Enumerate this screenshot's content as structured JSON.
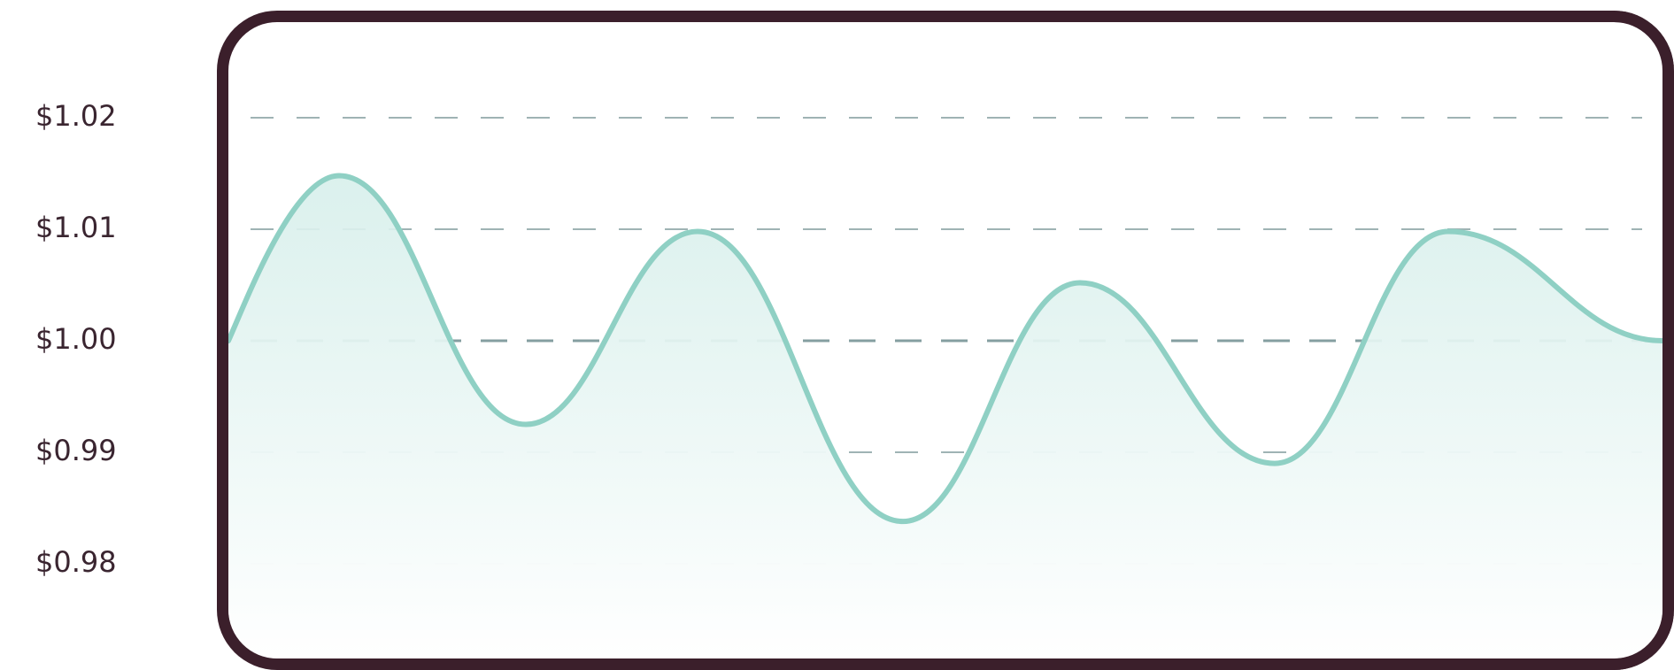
{
  "chart_data": {
    "type": "area",
    "title": "",
    "xlabel": "",
    "ylabel": "",
    "ylim": [
      0.98,
      1.02
    ],
    "y_ticks": [
      "$1.02",
      "$1.01",
      "$1.00",
      "$0.99",
      "$0.98"
    ],
    "y_tick_values": [
      1.02,
      1.01,
      1.0,
      0.99,
      0.98
    ],
    "grid": "horizontal-dashed",
    "series": [
      {
        "values": [
          1.0,
          1.0148,
          0.9925,
          1.0098,
          0.9838,
          1.0052,
          0.989,
          1.0098,
          1.0
        ]
      }
    ],
    "colors": {
      "line": "#8fd0c4",
      "fill_top": "#d7efeb",
      "grid": "#7f9a9c",
      "frame": "#3b1f2b",
      "label": "#3a2530"
    }
  }
}
